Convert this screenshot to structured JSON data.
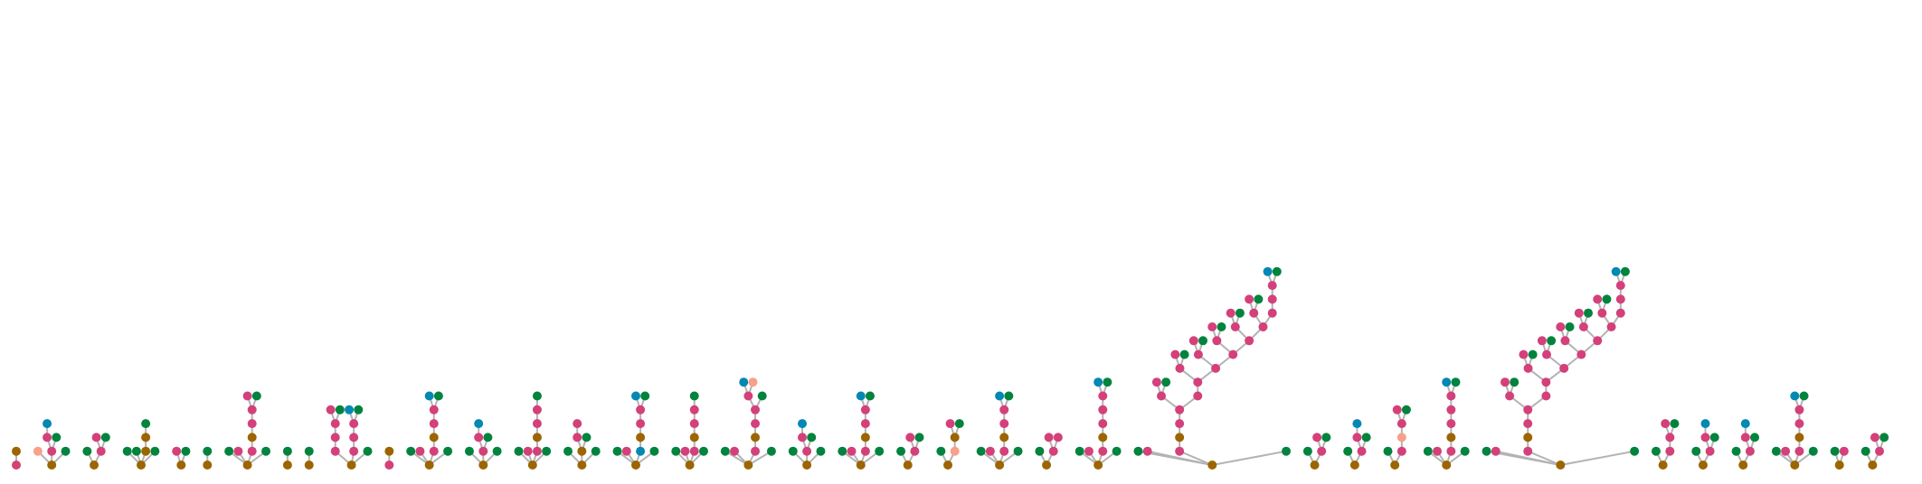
{
  "figure": {
    "kind": "glycan-tree-forest",
    "background": "#ffffff",
    "edge_color": "#b3b3b3",
    "node_colors": {
      "brown": "#9c6500",
      "green": "#00843d",
      "pink": "#d4407a",
      "blue": "#0388b3",
      "salmon": "#f7a08a"
    }
  },
  "trees": [
    {
      "name": "t1",
      "nodes": [
        [
          "pink",
          null
        ],
        [
          "brown",
          0
        ]
      ]
    },
    {
      "name": "t2",
      "nodes": [
        [
          "brown",
          null
        ],
        [
          "salmon",
          0
        ],
        [
          "pink",
          0
        ],
        [
          "pink",
          2
        ],
        [
          "blue",
          3
        ],
        [
          "green",
          2
        ],
        [
          "green",
          0
        ]
      ]
    },
    {
      "name": "t3",
      "nodes": [
        [
          "brown",
          null
        ],
        [
          "green",
          0
        ],
        [
          "pink",
          0
        ],
        [
          "pink",
          2
        ],
        [
          "green",
          2
        ]
      ]
    },
    {
      "name": "t4",
      "nodes": [
        [
          "brown",
          null
        ],
        [
          "green",
          0
        ],
        [
          "green",
          0
        ],
        [
          "brown",
          0
        ],
        [
          "brown",
          3
        ],
        [
          "green",
          4
        ],
        [
          "green",
          0
        ]
      ]
    },
    {
      "name": "t5",
      "nodes": [
        [
          "brown",
          null
        ],
        [
          "pink",
          0
        ],
        [
          "green",
          0
        ]
      ]
    },
    {
      "name": "t6",
      "nodes": [
        [
          "brown",
          null
        ],
        [
          "green",
          0
        ]
      ]
    },
    {
      "name": "t7",
      "nodes": [
        [
          "brown",
          null
        ],
        [
          "green",
          0
        ],
        [
          "pink",
          0
        ],
        [
          "pink",
          0
        ],
        [
          "brown",
          3
        ],
        [
          "pink",
          4
        ],
        [
          "pink",
          5
        ],
        [
          "pink",
          6
        ],
        [
          "green",
          6
        ],
        [
          "green",
          0
        ]
      ]
    },
    {
      "name": "t8",
      "nodes": [
        [
          "brown",
          null
        ],
        [
          "green",
          0
        ]
      ]
    },
    {
      "name": "t9",
      "nodes": [
        [
          "brown",
          null
        ],
        [
          "green",
          0
        ]
      ]
    },
    {
      "name": "t10",
      "nodes": [
        [
          "brown",
          null
        ],
        [
          "pink",
          0
        ],
        [
          "pink",
          1
        ],
        [
          "pink",
          2
        ],
        [
          "pink",
          3
        ],
        [
          "green",
          3
        ],
        [
          "pink",
          0
        ],
        [
          "pink",
          6
        ],
        [
          "pink",
          7
        ],
        [
          "blue",
          8
        ],
        [
          "green",
          8
        ],
        [
          "green",
          0
        ]
      ]
    },
    {
      "name": "t11",
      "nodes": [
        [
          "pink",
          null
        ],
        [
          "brown",
          0
        ]
      ]
    },
    {
      "name": "t12",
      "nodes": [
        [
          "brown",
          null
        ],
        [
          "green",
          0
        ],
        [
          "pink",
          0
        ],
        [
          "pink",
          0
        ],
        [
          "brown",
          3
        ],
        [
          "pink",
          4
        ],
        [
          "pink",
          5
        ],
        [
          "blue",
          6
        ],
        [
          "green",
          6
        ],
        [
          "green",
          0
        ]
      ]
    },
    {
      "name": "t13",
      "nodes": [
        [
          "brown",
          null
        ],
        [
          "green",
          0
        ],
        [
          "pink",
          0
        ],
        [
          "pink",
          2
        ],
        [
          "blue",
          3
        ],
        [
          "green",
          2
        ],
        [
          "green",
          0
        ]
      ]
    },
    {
      "name": "t14",
      "nodes": [
        [
          "brown",
          null
        ],
        [
          "green",
          0
        ],
        [
          "pink",
          0
        ],
        [
          "pink",
          0
        ],
        [
          "brown",
          3
        ],
        [
          "pink",
          4
        ],
        [
          "pink",
          5
        ],
        [
          "green",
          6
        ],
        [
          "green",
          0
        ]
      ]
    },
    {
      "name": "t15",
      "nodes": [
        [
          "brown",
          null
        ],
        [
          "green",
          0
        ],
        [
          "brown",
          0
        ],
        [
          "pink",
          2
        ],
        [
          "pink",
          3
        ],
        [
          "green",
          2
        ],
        [
          "green",
          0
        ]
      ]
    },
    {
      "name": "t16",
      "nodes": [
        [
          "brown",
          null
        ],
        [
          "green",
          0
        ],
        [
          "pink",
          0
        ],
        [
          "blue",
          0
        ],
        [
          "brown",
          3
        ],
        [
          "pink",
          4
        ],
        [
          "pink",
          5
        ],
        [
          "blue",
          6
        ],
        [
          "green",
          6
        ],
        [
          "green",
          0
        ]
      ]
    },
    {
      "name": "t17",
      "nodes": [
        [
          "brown",
          null
        ],
        [
          "green",
          0
        ],
        [
          "pink",
          0
        ],
        [
          "pink",
          0
        ],
        [
          "brown",
          3
        ],
        [
          "pink",
          4
        ],
        [
          "pink",
          5
        ],
        [
          "green",
          6
        ],
        [
          "green",
          0
        ]
      ]
    },
    {
      "name": "t18",
      "nodes": [
        [
          "brown",
          null
        ],
        [
          "green",
          0
        ],
        [
          "pink",
          0
        ],
        [
          "pink",
          0
        ],
        [
          "brown",
          3
        ],
        [
          "pink",
          4
        ],
        [
          "pink",
          5
        ],
        [
          "pink",
          6
        ],
        [
          "blue",
          7
        ],
        [
          "salmon",
          7
        ],
        [
          "green",
          6
        ],
        [
          "green",
          0
        ]
      ]
    },
    {
      "name": "t19",
      "nodes": [
        [
          "brown",
          null
        ],
        [
          "green",
          0
        ],
        [
          "pink",
          0
        ],
        [
          "pink",
          2
        ],
        [
          "blue",
          3
        ],
        [
          "green",
          2
        ],
        [
          "green",
          0
        ]
      ]
    },
    {
      "name": "t20",
      "nodes": [
        [
          "brown",
          null
        ],
        [
          "green",
          0
        ],
        [
          "pink",
          0
        ],
        [
          "pink",
          0
        ],
        [
          "brown",
          3
        ],
        [
          "pink",
          4
        ],
        [
          "pink",
          5
        ],
        [
          "blue",
          6
        ],
        [
          "green",
          6
        ],
        [
          "green",
          0
        ]
      ]
    },
    {
      "name": "t21",
      "nodes": [
        [
          "brown",
          null
        ],
        [
          "green",
          0
        ],
        [
          "pink",
          0
        ],
        [
          "pink",
          2
        ],
        [
          "green",
          2
        ]
      ]
    },
    {
      "name": "t22",
      "nodes": [
        [
          "brown",
          null
        ],
        [
          "green",
          0
        ],
        [
          "salmon",
          0
        ],
        [
          "brown",
          2
        ],
        [
          "pink",
          3
        ],
        [
          "green",
          3
        ]
      ]
    },
    {
      "name": "t23",
      "nodes": [
        [
          "brown",
          null
        ],
        [
          "green",
          0
        ],
        [
          "pink",
          0
        ],
        [
          "pink",
          0
        ],
        [
          "brown",
          3
        ],
        [
          "pink",
          4
        ],
        [
          "pink",
          5
        ],
        [
          "blue",
          6
        ],
        [
          "green",
          6
        ],
        [
          "green",
          0
        ]
      ]
    },
    {
      "name": "t24",
      "nodes": [
        [
          "brown",
          null
        ],
        [
          "green",
          0
        ],
        [
          "pink",
          0
        ],
        [
          "pink",
          2
        ],
        [
          "pink",
          2
        ]
      ]
    },
    {
      "name": "t25",
      "nodes": [
        [
          "brown",
          null
        ],
        [
          "green",
          0
        ],
        [
          "pink",
          0
        ],
        [
          "pink",
          0
        ],
        [
          "brown",
          3
        ],
        [
          "pink",
          4
        ],
        [
          "pink",
          5
        ],
        [
          "pink",
          6
        ],
        [
          "blue",
          7
        ],
        [
          "green",
          7
        ],
        [
          "green",
          0
        ]
      ]
    },
    {
      "name": "t26",
      "nodes": [
        [
          "brown",
          null
        ],
        [
          "green",
          0
        ],
        [
          "pink",
          0
        ],
        [
          "pink",
          0
        ],
        [
          "brown",
          3
        ],
        [
          "pink",
          4
        ],
        [
          "pink",
          5
        ],
        [
          "pink",
          6
        ],
        [
          "pink",
          7
        ],
        [
          "green",
          7
        ],
        [
          "pink",
          6
        ],
        [
          "pink",
          10
        ],
        [
          "pink",
          11
        ],
        [
          "pink",
          12
        ],
        [
          "green",
          12
        ],
        [
          "pink",
          11
        ],
        [
          "pink",
          15
        ],
        [
          "pink",
          16
        ],
        [
          "green",
          16
        ],
        [
          "pink",
          15
        ],
        [
          "pink",
          19
        ],
        [
          "pink",
          20
        ],
        [
          "green",
          20
        ],
        [
          "pink",
          19
        ],
        [
          "pink",
          23
        ],
        [
          "pink",
          24
        ],
        [
          "green",
          24
        ],
        [
          "pink",
          23
        ],
        [
          "pink",
          27
        ],
        [
          "pink",
          28
        ],
        [
          "green",
          28
        ],
        [
          "pink",
          27
        ],
        [
          "pink",
          31
        ],
        [
          "pink",
          32
        ],
        [
          "blue",
          33
        ],
        [
          "green",
          33
        ],
        [
          "green",
          0
        ]
      ]
    },
    {
      "name": "t27",
      "nodes": [
        [
          "brown",
          null
        ],
        [
          "green",
          0
        ],
        [
          "pink",
          0
        ],
        [
          "pink",
          2
        ],
        [
          "green",
          2
        ]
      ]
    },
    {
      "name": "t28",
      "nodes": [
        [
          "brown",
          null
        ],
        [
          "green",
          0
        ],
        [
          "pink",
          0
        ],
        [
          "pink",
          2
        ],
        [
          "blue",
          3
        ],
        [
          "green",
          2
        ]
      ]
    },
    {
      "name": "t29",
      "nodes": [
        [
          "brown",
          null
        ],
        [
          "green",
          0
        ],
        [
          "pink",
          0
        ],
        [
          "salmon",
          2
        ],
        [
          "pink",
          3
        ],
        [
          "pink",
          4
        ],
        [
          "green",
          4
        ]
      ]
    },
    {
      "name": "t30",
      "nodes": [
        [
          "brown",
          null
        ],
        [
          "green",
          0
        ],
        [
          "pink",
          0
        ],
        [
          "pink",
          0
        ],
        [
          "brown",
          3
        ],
        [
          "pink",
          4
        ],
        [
          "pink",
          5
        ],
        [
          "pink",
          6
        ],
        [
          "blue",
          7
        ],
        [
          "green",
          7
        ],
        [
          "green",
          0
        ]
      ]
    },
    {
      "name": "t31",
      "nodes": [
        [
          "brown",
          null
        ],
        [
          "green",
          0
        ],
        [
          "pink",
          0
        ],
        [
          "pink",
          0
        ],
        [
          "brown",
          3
        ],
        [
          "pink",
          4
        ],
        [
          "pink",
          5
        ],
        [
          "pink",
          6
        ],
        [
          "pink",
          7
        ],
        [
          "green",
          7
        ],
        [
          "pink",
          6
        ],
        [
          "pink",
          10
        ],
        [
          "pink",
          11
        ],
        [
          "pink",
          12
        ],
        [
          "green",
          12
        ],
        [
          "pink",
          11
        ],
        [
          "pink",
          15
        ],
        [
          "pink",
          16
        ],
        [
          "green",
          16
        ],
        [
          "pink",
          15
        ],
        [
          "pink",
          19
        ],
        [
          "pink",
          20
        ],
        [
          "green",
          20
        ],
        [
          "pink",
          19
        ],
        [
          "pink",
          23
        ],
        [
          "pink",
          24
        ],
        [
          "green",
          24
        ],
        [
          "pink",
          23
        ],
        [
          "pink",
          27
        ],
        [
          "pink",
          28
        ],
        [
          "green",
          28
        ],
        [
          "pink",
          27
        ],
        [
          "pink",
          31
        ],
        [
          "pink",
          32
        ],
        [
          "blue",
          33
        ],
        [
          "green",
          33
        ],
        [
          "green",
          0
        ]
      ]
    },
    {
      "name": "t32",
      "nodes": [
        [
          "brown",
          null
        ],
        [
          "green",
          0
        ],
        [
          "pink",
          0
        ],
        [
          "pink",
          2
        ],
        [
          "pink",
          3
        ],
        [
          "green",
          3
        ]
      ]
    },
    {
      "name": "t33",
      "nodes": [
        [
          "brown",
          null
        ],
        [
          "green",
          0
        ],
        [
          "pink",
          0
        ],
        [
          "pink",
          2
        ],
        [
          "blue",
          3
        ],
        [
          "green",
          2
        ]
      ]
    },
    {
      "name": "t34",
      "nodes": [
        [
          "brown",
          null
        ],
        [
          "green",
          0
        ],
        [
          "pink",
          0
        ],
        [
          "pink",
          2
        ],
        [
          "blue",
          3
        ],
        [
          "green",
          2
        ]
      ]
    },
    {
      "name": "t35",
      "nodes": [
        [
          "brown",
          null
        ],
        [
          "green",
          0
        ],
        [
          "pink",
          0
        ],
        [
          "pink",
          0
        ],
        [
          "brown",
          3
        ],
        [
          "pink",
          4
        ],
        [
          "pink",
          5
        ],
        [
          "blue",
          6
        ],
        [
          "green",
          6
        ],
        [
          "green",
          0
        ]
      ]
    },
    {
      "name": "t36",
      "nodes": [
        [
          "brown",
          null
        ],
        [
          "green",
          0
        ],
        [
          "pink",
          0
        ]
      ]
    },
    {
      "name": "t37",
      "nodes": [
        [
          "brown",
          null
        ],
        [
          "green",
          0
        ],
        [
          "pink",
          0
        ],
        [
          "pink",
          2
        ],
        [
          "green",
          2
        ]
      ]
    }
  ]
}
